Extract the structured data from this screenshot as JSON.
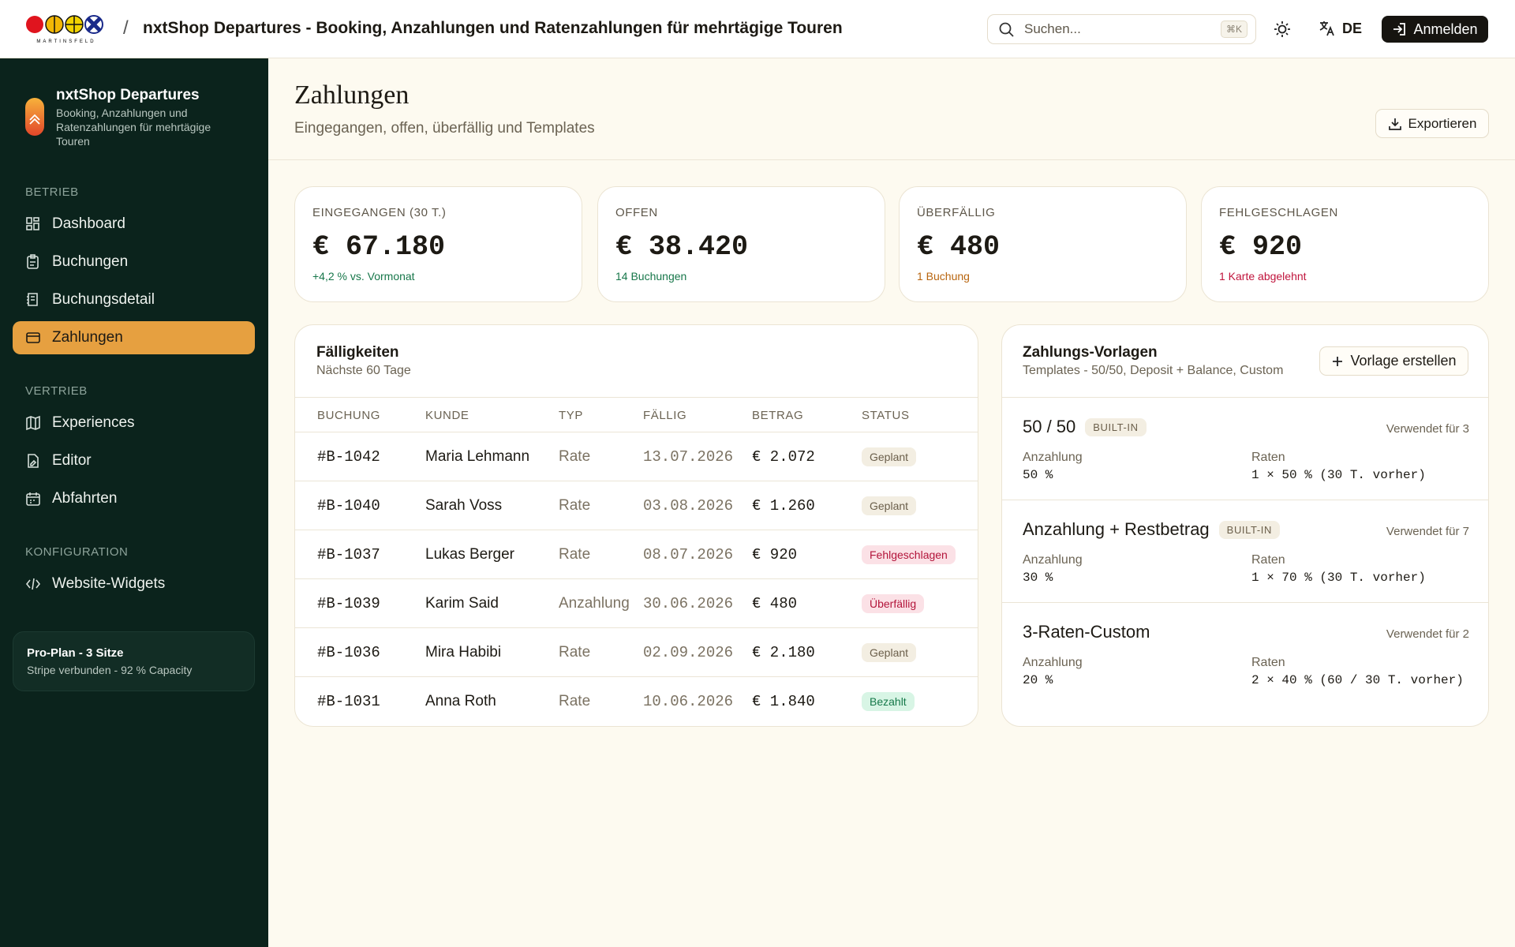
{
  "topbar": {
    "brand": "MARTINSFELD",
    "separator": "/",
    "title": "nxtShop Departures - Booking, Anzahlungen und Ratenzahlungen für mehrtägige Touren",
    "search_placeholder": "Suchen...",
    "search_shortcut": "⌘K",
    "language": "DE",
    "login": "Anmelden"
  },
  "sidebar": {
    "app_name": "nxtShop Departures",
    "app_description": "Booking, Anzahlungen und Ratenzahlungen für mehrtägige Touren",
    "sections": [
      {
        "title": "BETRIEB",
        "items": [
          "Dashboard",
          "Buchungen",
          "Buchungsdetail",
          "Zahlungen"
        ]
      },
      {
        "title": "VERTRIEB",
        "items": [
          "Experiences",
          "Editor",
          "Abfahrten"
        ]
      },
      {
        "title": "KONFIGURATION",
        "items": [
          "Website-Widgets"
        ]
      }
    ],
    "active_item": "Zahlungen",
    "plan": {
      "title": "Pro-Plan - 3 Sitze",
      "subtitle": "Stripe verbunden - 92 % Capacity"
    }
  },
  "page": {
    "title": "Zahlungen",
    "subtitle": "Eingegangen, offen, überfällig und Templates",
    "export": "Exportieren"
  },
  "kpis": [
    {
      "label": "EINGEGANGEN (30 T.)",
      "value": "€ 67.180",
      "note": "+4,2 % vs. Vormonat",
      "note_color": "#17774a"
    },
    {
      "label": "OFFEN",
      "value": "€ 38.420",
      "note": "14 Buchungen",
      "note_color": "#17774a"
    },
    {
      "label": "ÜBERFÄLLIG",
      "value": "€ 480",
      "note": "1 Buchung",
      "note_color": "#b8650f"
    },
    {
      "label": "FEHLGESCHLAGEN",
      "value": "€ 920",
      "note": "1 Karte abgelehnt",
      "note_color": "#c0143c"
    }
  ],
  "dues": {
    "title": "Fälligkeiten",
    "subtitle": "Nächste 60 Tage",
    "columns": [
      "BUCHUNG",
      "KUNDE",
      "TYP",
      "FÄLLIG",
      "BETRAG",
      "STATUS"
    ],
    "rows": [
      {
        "booking": "#B-1042",
        "customer": "Maria Lehmann",
        "type": "Rate",
        "due": "13.07.2026",
        "amount": "€ 2.072",
        "status": "Geplant",
        "status_bg": "#f3eee2",
        "status_fg": "#6b5f4b"
      },
      {
        "booking": "#B-1040",
        "customer": "Sarah Voss",
        "type": "Rate",
        "due": "03.08.2026",
        "amount": "€ 1.260",
        "status": "Geplant",
        "status_bg": "#f3eee2",
        "status_fg": "#6b5f4b"
      },
      {
        "booking": "#B-1037",
        "customer": "Lukas Berger",
        "type": "Rate",
        "due": "08.07.2026",
        "amount": "€ 920",
        "status": "Fehlgeschlagen",
        "status_bg": "#fbe1e6",
        "status_fg": "#b3143a"
      },
      {
        "booking": "#B-1039",
        "customer": "Karim Said",
        "type": "Anzahlung",
        "due": "30.06.2026",
        "amount": "€ 480",
        "status": "Überfällig",
        "status_bg": "#fbe1e6",
        "status_fg": "#b3143a"
      },
      {
        "booking": "#B-1036",
        "customer": "Mira Habibi",
        "type": "Rate",
        "due": "02.09.2026",
        "amount": "€ 2.180",
        "status": "Geplant",
        "status_bg": "#f3eee2",
        "status_fg": "#6b5f4b"
      },
      {
        "booking": "#B-1031",
        "customer": "Anna Roth",
        "type": "Rate",
        "due": "10.06.2026",
        "amount": "€ 1.840",
        "status": "Bezahlt",
        "status_bg": "#d8f5e5",
        "status_fg": "#16794a"
      }
    ]
  },
  "templates": {
    "title": "Zahlungs-Vorlagen",
    "subtitle": "Templates - 50/50, Deposit + Balance, Custom",
    "create": "Vorlage erstellen",
    "items": [
      {
        "name": "50 / 50",
        "badge": "BUILT-IN",
        "usage": "Verwendet für 3",
        "deposit_label": "Anzahlung",
        "deposit": "50 %",
        "rates_label": "Raten",
        "rates": "1 × 50 % (30 T. vorher)"
      },
      {
        "name": "Anzahlung + Restbetrag",
        "badge": "BUILT-IN",
        "usage": "Verwendet für 7",
        "deposit_label": "Anzahlung",
        "deposit": "30 %",
        "rates_label": "Raten",
        "rates": "1 × 70 % (30 T. vorher)"
      },
      {
        "name": "3-Raten-Custom",
        "usage": "Verwendet für 2",
        "deposit_label": "Anzahlung",
        "deposit": "20 %",
        "rates_label": "Raten",
        "rates": "2 × 40 % (60 / 30 T. vorher)"
      }
    ]
  }
}
